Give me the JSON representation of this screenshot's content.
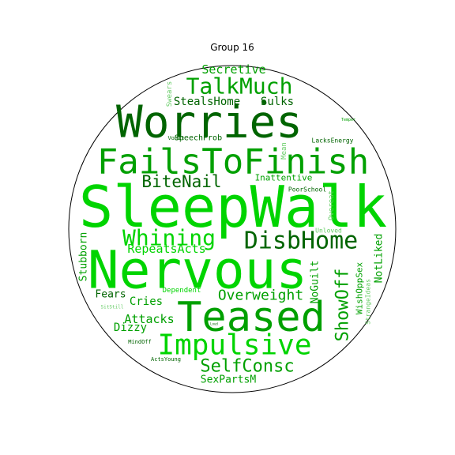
{
  "chart_data": {
    "type": "wordcloud",
    "title": "Group 16",
    "colors": {
      "dark": "#006400",
      "mid": "#00a000",
      "bright": "#00d400",
      "light": "#66cc66",
      "outline": "#000000"
    },
    "words": [
      {
        "text": "SleepWalk",
        "color": "bright"
      },
      {
        "text": "Nervous",
        "color": "bright"
      },
      {
        "text": "Worries",
        "color": "dark"
      },
      {
        "text": "FailsToFinish",
        "color": "mid"
      },
      {
        "text": "Teased",
        "color": "mid"
      },
      {
        "text": "Impulsive",
        "color": "bright"
      },
      {
        "text": "DisbHome",
        "color": "dark"
      },
      {
        "text": "Whining",
        "color": "bright"
      },
      {
        "text": "TalkMuch",
        "color": "mid"
      },
      {
        "text": "BiteNail",
        "color": "dark"
      },
      {
        "text": "SelfConsc",
        "color": "mid"
      },
      {
        "text": "ShowOff",
        "color": "mid"
      },
      {
        "text": "Overweight",
        "color": "mid"
      },
      {
        "text": "RepeatsActs",
        "color": "bright"
      },
      {
        "text": "Secretive",
        "color": "mid"
      },
      {
        "text": "StealsHome",
        "color": "dark"
      },
      {
        "text": "Sulks",
        "color": "dark"
      },
      {
        "text": "Cries",
        "color": "mid"
      },
      {
        "text": "Attacks",
        "color": "mid"
      },
      {
        "text": "Dizzy",
        "color": "mid"
      },
      {
        "text": "Fears",
        "color": "dark"
      },
      {
        "text": "Stubborn",
        "color": "mid"
      },
      {
        "text": "SexPartsM",
        "color": "mid"
      },
      {
        "text": "NoGuilt",
        "color": "mid"
      },
      {
        "text": "NotLiked",
        "color": "mid"
      },
      {
        "text": "WishOppSex",
        "color": "mid"
      },
      {
        "text": "Inattentive",
        "color": "mid"
      },
      {
        "text": "SpeechProb",
        "color": "dark"
      },
      {
        "text": "Dependent",
        "color": "bright"
      },
      {
        "text": "PoorSchool",
        "color": "dark"
      },
      {
        "text": "LacksEnergy",
        "color": "dark"
      },
      {
        "text": "Swears",
        "color": "light"
      },
      {
        "text": "Mean",
        "color": "light"
      },
      {
        "text": "Overeat",
        "color": "light"
      },
      {
        "text": "Unloved",
        "color": "light"
      },
      {
        "text": "StrangeIdeas",
        "color": "light"
      },
      {
        "text": "Vomit",
        "color": "dark"
      },
      {
        "text": "MindOff",
        "color": "dark"
      },
      {
        "text": "ActsYoung",
        "color": "dark"
      },
      {
        "text": "SitStill",
        "color": "light"
      },
      {
        "text": "Temper",
        "color": "mid"
      },
      {
        "text": "Loud",
        "color": "dark"
      }
    ]
  }
}
